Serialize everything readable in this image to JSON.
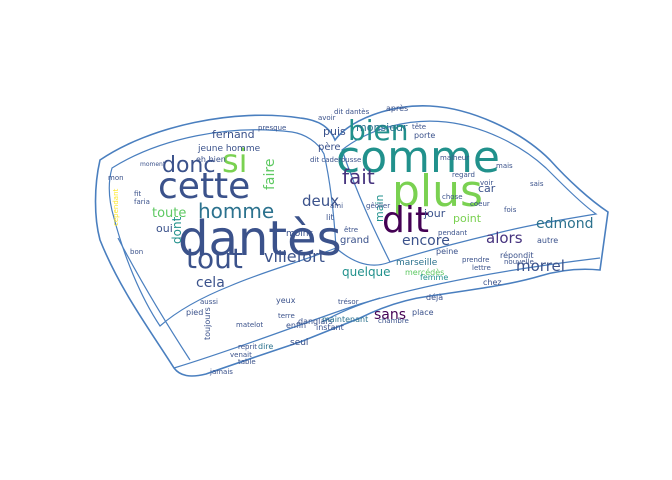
{
  "cloud": {
    "palette": {
      "deep_blue": "#3b528b",
      "indigo": "#46337e",
      "purple": "#440154",
      "teal": "#21918c",
      "sea": "#2c728e",
      "green": "#5ec962",
      "lime": "#7ad151",
      "yellow": "#fde725",
      "outline": "#4a7fbf"
    },
    "words": [
      {
        "text": "comme",
        "color": "#21918c"
      },
      {
        "text": "plus",
        "color": "#7ad151"
      },
      {
        "text": "dantès",
        "color": "#3b528b"
      },
      {
        "text": "dit",
        "color": "#440154"
      },
      {
        "text": "cette",
        "color": "#3b528b"
      },
      {
        "text": "si",
        "color": "#7ad151"
      },
      {
        "text": "tout",
        "color": "#3b528b"
      },
      {
        "text": "bien",
        "color": "#21918c"
      },
      {
        "text": "homme",
        "color": "#2c728e"
      },
      {
        "text": "donc",
        "color": "#3b528b"
      },
      {
        "text": "fait",
        "color": "#46337e"
      },
      {
        "text": "villefort",
        "color": "#3b528b"
      },
      {
        "text": "morrel",
        "color": "#3b528b"
      },
      {
        "text": "edmond",
        "color": "#2c728e"
      },
      {
        "text": "alors",
        "color": "#46337e"
      },
      {
        "text": "encore",
        "color": "#3b528b"
      },
      {
        "text": "deux",
        "color": "#3b528b"
      },
      {
        "text": "sans",
        "color": "#440154"
      },
      {
        "text": "cela",
        "color": "#3b528b"
      },
      {
        "text": "toute",
        "color": "#5ec962"
      },
      {
        "text": "quelque",
        "color": "#21918c"
      },
      {
        "text": "faire",
        "color": "#5ec962"
      },
      {
        "text": "monsieur",
        "color": "#2c728e"
      },
      {
        "text": "fernand",
        "color": "#3b528b"
      },
      {
        "text": "oui",
        "color": "#3b528b"
      },
      {
        "text": "dont",
        "color": "#21918c"
      },
      {
        "text": "puis",
        "color": "#3b528b"
      },
      {
        "text": "point",
        "color": "#7ad151"
      },
      {
        "text": "jour",
        "color": "#3b528b"
      },
      {
        "text": "car",
        "color": "#3b528b"
      },
      {
        "text": "main",
        "color": "#21918c"
      },
      {
        "text": "père",
        "color": "#3b528b"
      },
      {
        "text": "grand",
        "color": "#3b528b"
      },
      {
        "text": "caderousse",
        "color": "#2c728e"
      },
      {
        "text": "danglars",
        "color": "#3b528b"
      },
      {
        "text": "marseille",
        "color": "#2c728e"
      },
      {
        "text": "jeune homme",
        "color": "#3b528b"
      },
      {
        "text": "eh bien",
        "color": "#3b528b"
      },
      {
        "text": "moins",
        "color": "#3b528b"
      },
      {
        "text": "dire",
        "color": "#2c728e"
      },
      {
        "text": "peine",
        "color": "#3b528b"
      },
      {
        "text": "mercédès",
        "color": "#5ec962"
      },
      {
        "text": "femme",
        "color": "#21918c"
      },
      {
        "text": "répondit",
        "color": "#3b528b"
      },
      {
        "text": "autre",
        "color": "#3b528b"
      },
      {
        "text": "chez",
        "color": "#3b528b"
      },
      {
        "text": "déjà",
        "color": "#3b528b"
      },
      {
        "text": "seul",
        "color": "#3b528b"
      },
      {
        "text": "enfin",
        "color": "#3b528b"
      },
      {
        "text": "instant",
        "color": "#3b528b"
      },
      {
        "text": "maintenant",
        "color": "#2c728e"
      },
      {
        "text": "chambre",
        "color": "#3b528b"
      },
      {
        "text": "place",
        "color": "#3b528b"
      },
      {
        "text": "toujours",
        "color": "#3b528b"
      },
      {
        "text": "pied",
        "color": "#3b528b"
      },
      {
        "text": "yeux",
        "color": "#3b528b"
      },
      {
        "text": "terre",
        "color": "#3b528b"
      },
      {
        "text": "reprit",
        "color": "#3b528b"
      },
      {
        "text": "table",
        "color": "#3b528b"
      },
      {
        "text": "jamais",
        "color": "#3b528b"
      },
      {
        "text": "venait",
        "color": "#3b528b"
      },
      {
        "text": "aussi",
        "color": "#3b528b"
      },
      {
        "text": "matelot",
        "color": "#3b528b"
      },
      {
        "text": "après",
        "color": "#3b528b"
      },
      {
        "text": "porte",
        "color": "#3b528b"
      },
      {
        "text": "avoir",
        "color": "#3b528b"
      },
      {
        "text": "tête",
        "color": "#3b528b"
      },
      {
        "text": "presque",
        "color": "#3b528b"
      },
      {
        "text": "moment",
        "color": "#3b528b"
      },
      {
        "text": "voir",
        "color": "#3b528b"
      },
      {
        "text": "malheur",
        "color": "#3b528b"
      },
      {
        "text": "regard",
        "color": "#3b528b"
      },
      {
        "text": "pendant",
        "color": "#3b528b"
      },
      {
        "text": "bon",
        "color": "#3b528b"
      },
      {
        "text": "fit",
        "color": "#3b528b"
      },
      {
        "text": "mon",
        "color": "#3b528b"
      },
      {
        "text": "lit",
        "color": "#3b528b"
      },
      {
        "text": "être",
        "color": "#3b528b"
      },
      {
        "text": "cependant",
        "color": "#fde725"
      },
      {
        "text": "coeur",
        "color": "#3b528b"
      },
      {
        "text": "faria",
        "color": "#3b528b"
      },
      {
        "text": "prendre",
        "color": "#3b528b"
      },
      {
        "text": "nouvelle",
        "color": "#3b528b"
      },
      {
        "text": "ami",
        "color": "#3b528b"
      },
      {
        "text": "gêolier",
        "color": "#3b528b"
      },
      {
        "text": "dit caderousse",
        "color": "#3b528b"
      },
      {
        "text": "dit dantès",
        "color": "#3b528b"
      },
      {
        "text": "trésor",
        "color": "#3b528b"
      },
      {
        "text": "mais",
        "color": "#3b528b"
      },
      {
        "text": "fois",
        "color": "#3b528b"
      },
      {
        "text": "sais",
        "color": "#3b528b"
      },
      {
        "text": "chose",
        "color": "#3b528b"
      },
      {
        "text": "lettre",
        "color": "#3b528b"
      }
    ]
  }
}
